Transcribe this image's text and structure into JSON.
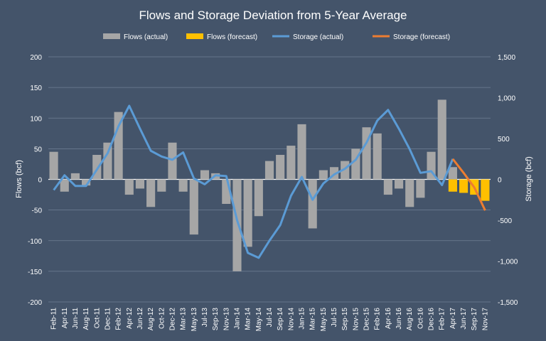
{
  "chart_data": {
    "type": "bar-line-combo",
    "title": "Flows and Storage Deviation from 5-Year Average",
    "y_left_label": "Flows (bcf)",
    "y_right_label": "Storage (bcf)",
    "y_left_lim": [
      -200,
      200
    ],
    "y_left_ticks": [
      200,
      150,
      100,
      50,
      0,
      -50,
      -100,
      -150,
      -200
    ],
    "y_left_tick_labels": [
      "200",
      "150",
      "100",
      "50",
      "0",
      "-50",
      "-100",
      "-150",
      "-200"
    ],
    "y_right_lim": [
      -1500,
      1500
    ],
    "y_right_ticks": [
      1500,
      1000,
      500,
      0,
      -500,
      -1000,
      -1500
    ],
    "y_right_tick_labels": [
      "1,500",
      "1,000",
      "500",
      "0",
      "-500",
      "-1,000",
      "-1,500"
    ],
    "grid": "horizontal",
    "legend_position": "top",
    "x_tick_labels": [
      "Feb-11",
      "Apr-11",
      "Jun-11",
      "Aug-11",
      "Oct-11",
      "Dec-11",
      "Feb-12",
      "Apr-12",
      "Jun-12",
      "Aug-12",
      "Oct-12",
      "Dec-12",
      "Mar-13",
      "May-13",
      "Jul-13",
      "Sep-13",
      "Nov-13",
      "Jan-14",
      "Mar-14",
      "May-14",
      "Jul-14",
      "Sep-14",
      "Nov-14",
      "Jan-15",
      "Mar-15",
      "May-15",
      "Jul-15",
      "Sep-15",
      "Nov-15",
      "Dec-15",
      "Feb-16",
      "Apr-16",
      "Jun-16",
      "Aug-16",
      "Oct-16",
      "Dec-16",
      "Feb-17",
      "Apr-17",
      "Jun-17",
      "Sep-17",
      "Nov-17"
    ],
    "series": [
      {
        "name": "Flows (actual)",
        "kind": "bar",
        "axis": "left",
        "color": "#a6a6a6",
        "x": [
          "Feb-11",
          "Apr-11",
          "Jun-11",
          "Aug-11",
          "Oct-11",
          "Dec-11",
          "Feb-12",
          "Apr-12",
          "Jun-12",
          "Aug-12",
          "Oct-12",
          "Dec-12",
          "Mar-13",
          "May-13",
          "Jul-13",
          "Sep-13",
          "Nov-13",
          "Jan-14",
          "Mar-14",
          "May-14",
          "Jul-14",
          "Sep-14",
          "Nov-14",
          "Jan-15",
          "Mar-15",
          "May-15",
          "Jul-15",
          "Sep-15",
          "Nov-15",
          "Dec-15",
          "Feb-16",
          "Apr-16",
          "Jun-16",
          "Aug-16",
          "Oct-16",
          "Dec-16",
          "Feb-17",
          "Apr-17"
        ],
        "values": [
          45,
          -20,
          10,
          -10,
          40,
          60,
          110,
          -25,
          -15,
          -45,
          -20,
          60,
          -20,
          -90,
          15,
          10,
          -40,
          -150,
          -110,
          -60,
          30,
          40,
          55,
          90,
          -80,
          15,
          20,
          30,
          50,
          85,
          75,
          -25,
          -15,
          -45,
          -30,
          45,
          130,
          20
        ]
      },
      {
        "name": "Flows (forecast)",
        "kind": "bar",
        "axis": "left",
        "color": "#ffc000",
        "x": [
          "Apr-17",
          "Jun-17",
          "Sep-17",
          "Nov-17"
        ],
        "values": [
          -20,
          -22,
          -25,
          -35
        ]
      },
      {
        "name": "Storage (actual)",
        "kind": "line",
        "axis": "right",
        "color": "#5b9bd5",
        "x": [
          "Feb-11",
          "Apr-11",
          "Jun-11",
          "Aug-11",
          "Oct-11",
          "Dec-11",
          "Feb-12",
          "Apr-12",
          "Jun-12",
          "Aug-12",
          "Oct-12",
          "Dec-12",
          "Mar-13",
          "May-13",
          "Jul-13",
          "Sep-13",
          "Nov-13",
          "Jan-14",
          "Mar-14",
          "May-14",
          "Jul-14",
          "Sep-14",
          "Nov-14",
          "Jan-15",
          "Mar-15",
          "May-15",
          "Jul-15",
          "Sep-15",
          "Nov-15",
          "Dec-15",
          "Feb-16",
          "Apr-16",
          "Jun-16",
          "Aug-16",
          "Oct-16",
          "Dec-16",
          "Feb-17",
          "Apr-17"
        ],
        "values": [
          -130,
          50,
          -80,
          -80,
          120,
          320,
          650,
          900,
          620,
          350,
          280,
          240,
          330,
          10,
          -60,
          50,
          40,
          -500,
          -900,
          -960,
          -750,
          -560,
          -200,
          30,
          -250,
          -50,
          60,
          130,
          240,
          450,
          720,
          850,
          620,
          370,
          80,
          100,
          -70,
          250
        ]
      },
      {
        "name": "Storage (forecast)",
        "kind": "line",
        "axis": "right",
        "color": "#ed7d31",
        "x": [
          "Apr-17",
          "Jun-17",
          "Sep-17",
          "Nov-17"
        ],
        "values": [
          250,
          80,
          -100,
          -380
        ]
      }
    ]
  }
}
